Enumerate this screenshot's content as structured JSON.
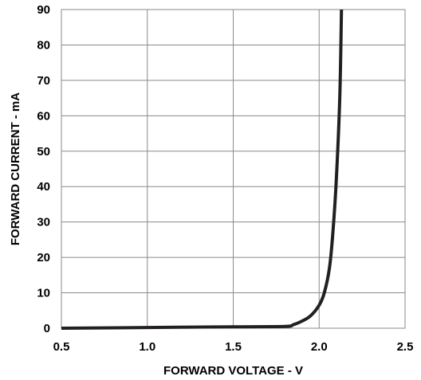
{
  "chart_data": {
    "type": "line",
    "title": "",
    "xlabel": "FORWARD VOLTAGE - V",
    "ylabel": "FORWARD CURRENT - mA",
    "xlim": [
      0.5,
      2.5
    ],
    "ylim": [
      0,
      90
    ],
    "x_ticks": [
      "0.5",
      "1.0",
      "1.5",
      "2.0",
      "2.5"
    ],
    "y_ticks": [
      "0",
      "10",
      "20",
      "30",
      "40",
      "50",
      "60",
      "70",
      "80",
      "90"
    ],
    "grid": true,
    "legend": "none",
    "colors": {
      "curve": "#231f20",
      "grid": "#8a8a8a"
    },
    "series": [
      {
        "x": [
          0.5,
          1.0,
          1.5,
          1.8,
          1.85,
          1.9,
          1.95,
          2.0,
          2.03,
          2.06,
          2.08,
          2.1,
          2.12,
          2.13
        ],
        "y": [
          0.0,
          0.2,
          0.4,
          0.5,
          1.0,
          2.0,
          3.5,
          6.5,
          10.0,
          17.0,
          27.0,
          42.0,
          65.0,
          90.0
        ]
      }
    ]
  }
}
